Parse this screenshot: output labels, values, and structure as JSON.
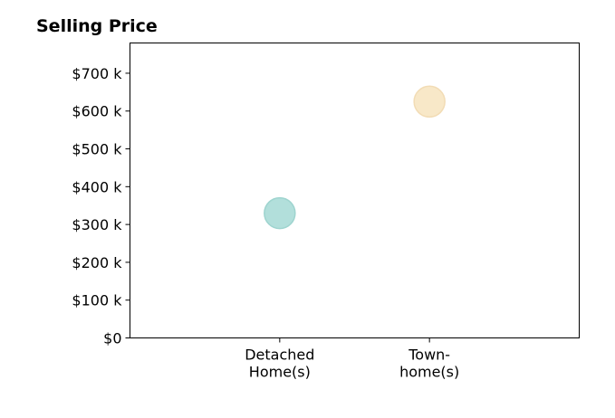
{
  "chart_data": {
    "type": "scatter",
    "title": "Selling Price",
    "xlabel": "",
    "ylabel": "",
    "categories": [
      [
        "Detached",
        "Home(s)"
      ],
      [
        "Town-",
        "home(s)"
      ]
    ],
    "xlim": [
      -1,
      2
    ],
    "values": [
      330,
      625
    ],
    "ylim": [
      0,
      780
    ],
    "y_ticks": [
      0,
      100,
      200,
      300,
      400,
      500,
      600,
      700
    ],
    "y_tick_labels": [
      "$0",
      "$100 k",
      "$200 k",
      "$300 k",
      "$400 k",
      "$500 k",
      "$600 k",
      "$700 k"
    ],
    "point_colors": [
      "#b2dfdb",
      "#f8e8c8"
    ],
    "point_edge_colors": [
      "#9ed4cf",
      "#f2dcb5"
    ],
    "grid": false,
    "legend": "none"
  }
}
